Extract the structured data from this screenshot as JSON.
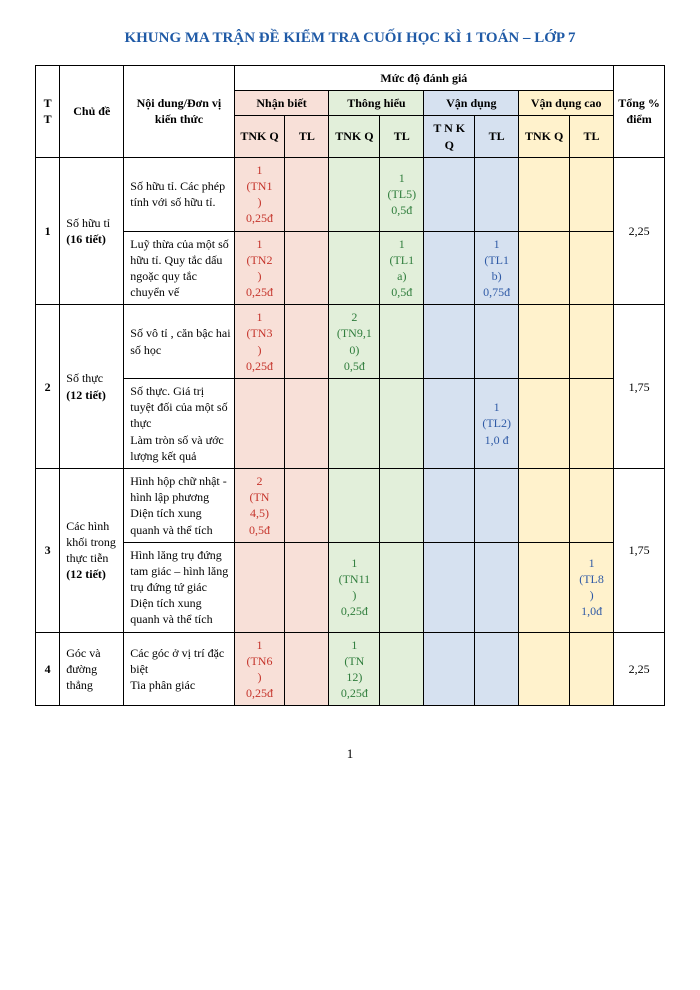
{
  "title": {
    "text": "KHUNG MA TRẬN ĐỀ KIỂM TRA CUỐI HỌC KÌ 1 TOÁN – LỚP 7",
    "color": "#1f5aa6"
  },
  "headers": {
    "tt": "T\nT",
    "chude": "Chủ đề",
    "noidung": "Nội dung/Đơn vị kiến thức",
    "mucdo": "Mức độ đánh giá",
    "nhanbiet": "Nhận biết",
    "thonghieu": "Thông hiểu",
    "vandung": "Vận dụng",
    "vandungcao": "Vận dụng cao",
    "tnkq": "TNK\nQ",
    "tnkq_s": "T\nN\nK\nQ",
    "tl": "TL",
    "tong": "Tổng\n%\nđiểm"
  },
  "colors": {
    "title": "#1f5aa6",
    "nb_bg": "#f8e0d8",
    "th_bg": "#e2efda",
    "vd_bg": "#d6e1f0",
    "vdc_bg": "#fff2cc",
    "nb_text": "#c5342b",
    "th_text": "#2f7d3c",
    "vd_text": "#2f5aa6",
    "vdc_text": "#2f5aa6"
  },
  "rows": [
    {
      "tt": "1",
      "chude": "Số hữu tỉ (16 tiết)",
      "sub": [
        {
          "nd": "Số hữu tỉ. Các phép tính với số hữu tỉ.",
          "nb_tnkq": "1\n(TN1\n)\n0,25đ",
          "nb_tl": "",
          "th_tnkq": "",
          "th_tl": "1\n(TL5)\n0,5đ",
          "vd_tnkq": "",
          "vd_tl": "",
          "vdc_tnkq": "",
          "vdc_tl": ""
        },
        {
          "nd": "Luỹ thừa của một số hữu tỉ. Quy tắc dấu ngoặc quy tắc chuyển vế",
          "nb_tnkq": "1\n(TN2\n)\n0,25đ",
          "nb_tl": "",
          "th_tnkq": "",
          "th_tl": "1\n(TL1\na)\n0,5đ",
          "vd_tnkq": "",
          "vd_tl": "1\n(TL1\nb)\n0,75đ",
          "vdc_tnkq": "",
          "vdc_tl": ""
        }
      ],
      "tong": "2,25"
    },
    {
      "tt": "2",
      "chude": "Số thực (12 tiết)",
      "sub": [
        {
          "nd": "Số vô tỉ , căn bậc hai số học",
          "nb_tnkq": "1\n(TN3\n)\n0,25đ",
          "nb_tl": "",
          "th_tnkq": "2\n(TN9,1\n0)\n0,5đ",
          "th_tl": "",
          "vd_tnkq": "",
          "vd_tl": "",
          "vdc_tnkq": "",
          "vdc_tl": ""
        },
        {
          "nd": "Số thực. Giá trị tuyệt đối của một số thực\nLàm tròn số và ước lượng kết quả",
          "nb_tnkq": "",
          "nb_tl": "",
          "th_tnkq": "",
          "th_tl": "",
          "vd_tnkq": "",
          "vd_tl": "1\n(TL2)\n1,0 đ",
          "vdc_tnkq": "",
          "vdc_tl": ""
        }
      ],
      "tong": "1,75"
    },
    {
      "tt": "3",
      "chude": "Các hình khối trong thực tiễn (12 tiết)",
      "sub": [
        {
          "nd": "Hình hộp chữ nhật - hình lập phương\nDiện tích xung quanh và thể tích",
          "nb_tnkq": "2\n(TN\n4,5)\n0,5đ",
          "nb_tl": "",
          "th_tnkq": "",
          "th_tl": "",
          "vd_tnkq": "",
          "vd_tl": "",
          "vdc_tnkq": "",
          "vdc_tl": ""
        },
        {
          "nd": "Hình lăng trụ đứng tam giác – hình lăng trụ đứng tứ giác\nDiện tích xung quanh và thể tích",
          "nb_tnkq": "",
          "nb_tl": "",
          "th_tnkq": "1\n(TN11\n)\n0,25đ",
          "th_tl": "",
          "vd_tnkq": "",
          "vd_tl": "",
          "vdc_tnkq": "",
          "vdc_tl": "1\n(TL8\n)\n1,0đ"
        }
      ],
      "tong": "1,75"
    },
    {
      "tt": "4",
      "chude": "Góc và đường thẳng",
      "sub": [
        {
          "nd": "Các góc ở vị trí đặc biệt\nTia phân giác",
          "nb_tnkq": "1\n(TN6\n)\n0,25đ",
          "nb_tl": "",
          "th_tnkq": "1\n(TN\n12)\n0,25đ",
          "th_tl": "",
          "vd_tnkq": "",
          "vd_tl": "",
          "vdc_tnkq": "",
          "vdc_tl": ""
        }
      ],
      "tong": "2,25"
    }
  ],
  "page_number": "1"
}
